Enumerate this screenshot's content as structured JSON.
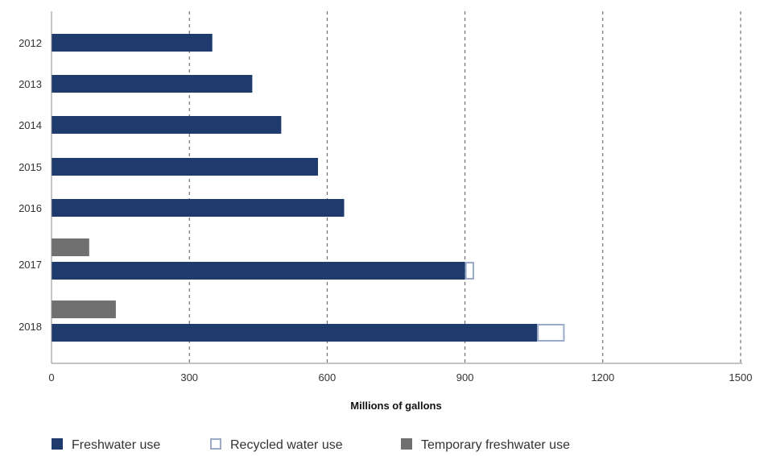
{
  "chart_data": {
    "type": "bar",
    "orientation": "horizontal",
    "xlabel": "Millions of gallons",
    "xlim": [
      0,
      1500
    ],
    "xticks": [
      0,
      300,
      600,
      900,
      1200,
      1500
    ],
    "grid": "vertical dashed",
    "legend_position": "bottom",
    "categories": [
      "2012",
      "2013",
      "2014",
      "2015",
      "2016",
      "2017",
      "2018"
    ],
    "series": [
      {
        "name": "Freshwater use",
        "color": "#1f3b6e",
        "style": "filled",
        "values": [
          350,
          437,
          500,
          580,
          637,
          900,
          1057
        ]
      },
      {
        "name": "Recycled water use",
        "color": "#9aabc9",
        "style": "outline",
        "values": [
          0,
          0,
          0,
          0,
          0,
          20,
          60
        ]
      },
      {
        "name": "Temporary freshwater use",
        "color": "#707070",
        "style": "filled",
        "values": [
          0,
          0,
          0,
          0,
          0,
          82,
          140
        ]
      }
    ]
  }
}
